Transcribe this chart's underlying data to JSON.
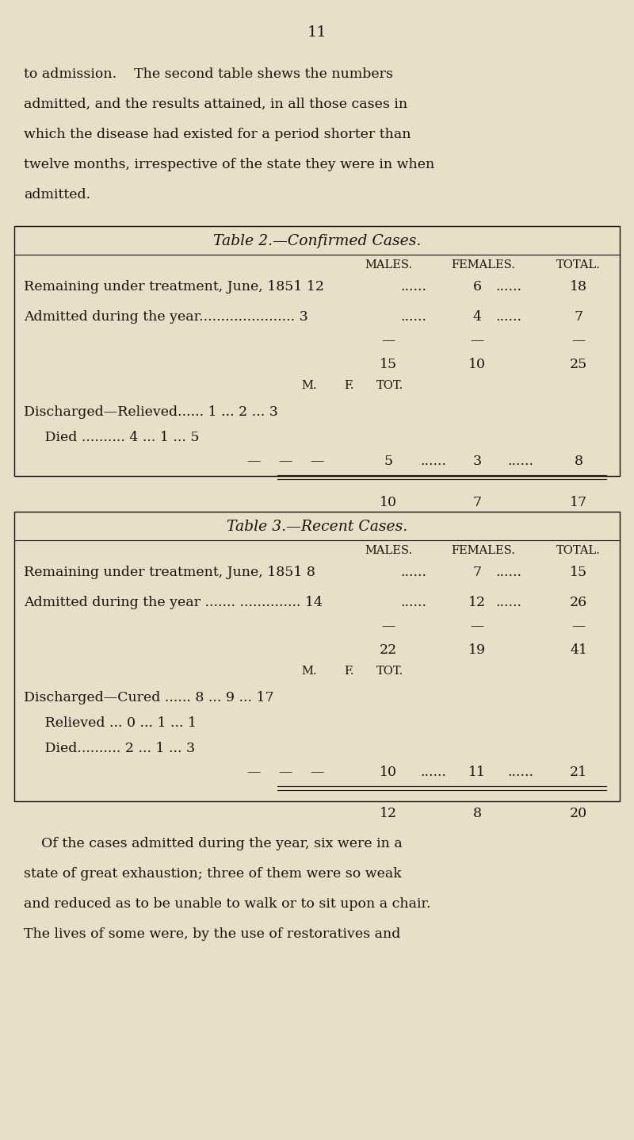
{
  "bg_color": "#e8dfc8",
  "text_color": "#1a1208",
  "page_number": "11",
  "intro_lines": [
    "to admission.    The second table shews the numbers",
    "admitted, and the results attained, in all those cases in",
    "which the disease had existed for a period shorter than",
    "twelve months, irrespective of the state they were in when",
    "admitted."
  ],
  "t2_title": "Table 2.—Confirmed Cases.",
  "t2_col_heads": [
    "MALES.",
    "FEMALES.",
    "TOTAL."
  ],
  "t2_r1_text": "Remaining under treatment, June, 1851 12",
  "t2_r1_dots1": "......",
  "t2_r1_f": "6",
  "t2_r1_dots2": "......",
  "t2_r1_tot": "18",
  "t2_r2_text": "Admitted during the year......................",
  "t2_r2_m": "3",
  "t2_r2_dots1": "......",
  "t2_r2_f": "4",
  "t2_r2_dots2": "......",
  "t2_r2_tot": "7",
  "t2_sub_m": "15",
  "t2_sub_f": "10",
  "t2_sub_tot": "25",
  "t2_mft": [
    "M.",
    "F.",
    "TOT."
  ],
  "t2_d1_text": "Discharged—Relieved...... 1 ... 2 ... 3",
  "t2_d2_text": "       Died .......... 4 ... 1 ... 5",
  "t2_dash_m": "5",
  "t2_dash_f": "3",
  "t2_dash_tot": "8",
  "t2_tot_m": "10",
  "t2_tot_f": "7",
  "t2_tot_tot": "17",
  "t3_title": "Table 3.—Recent Cases.",
  "t3_col_heads": [
    "MALES.",
    "FEMALES.",
    "TOTAL."
  ],
  "t3_r1_text": "Remaining under treatment, June, 1851 8",
  "t3_r1_dots1": "......",
  "t3_r1_f": "7",
  "t3_r1_dots2": "......",
  "t3_r1_tot": "15",
  "t3_r2_text": "Admitted during the year ....... ..............",
  "t3_r2_m": "14",
  "t3_r2_dots1": "......",
  "t3_r2_f": "12",
  "t3_r2_dots2": "......",
  "t3_r2_tot": "26",
  "t3_sub_m": "22",
  "t3_sub_f": "19",
  "t3_sub_tot": "41",
  "t3_mft": [
    "M.",
    "F.",
    "TOT."
  ],
  "t3_d1_text": "Discharged—Cured ...... 8 ... 9 ... 17",
  "t3_d2_text": "       Relieved ... 0 ... 1 ... 1",
  "t3_d3_text": "       Died.......... 2 ... 1 ... 3",
  "t3_dash_m": "10",
  "t3_dash_f": "11",
  "t3_dash_tot": "21",
  "t3_tot_m": "12",
  "t3_tot_f": "8",
  "t3_tot_tot": "20",
  "outro_lines": [
    "    Of the cases admitted during the year, six were in a",
    "state of great exhaustion; three of them were so weak",
    "and reduced as to be unable to walk or to sit upon a chair.",
    "The lives of some were, by the use of restoratives and"
  ]
}
